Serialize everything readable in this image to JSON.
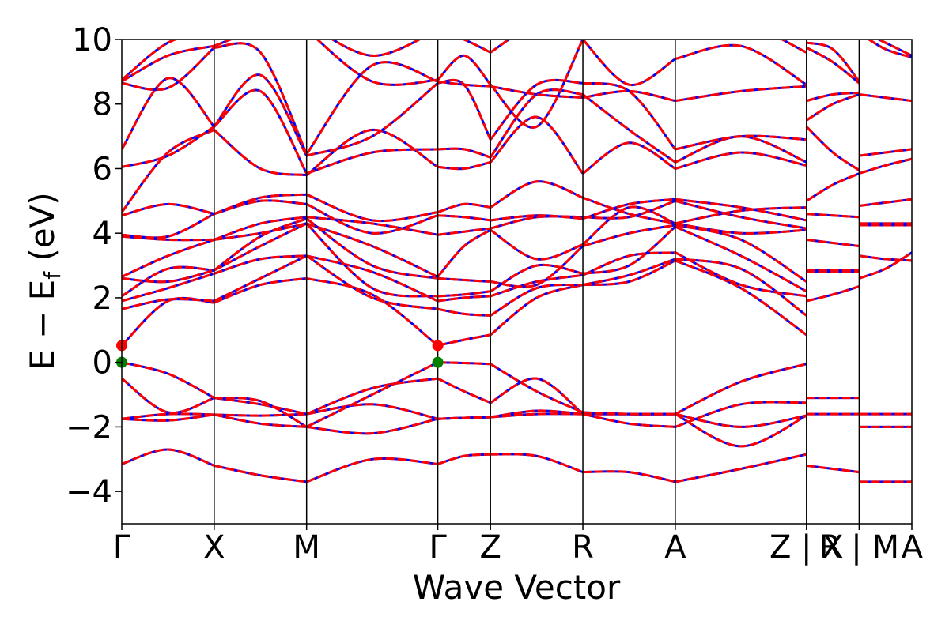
{
  "chart_data": {
    "type": "line",
    "xlabel": "Wave Vector",
    "ylabel_main": "E − E",
    "ylabel_sub": "f",
    "ylabel_unit": " (eV)",
    "ylim": [
      -5,
      10
    ],
    "yticks": [
      -4,
      -2,
      0,
      2,
      4,
      6,
      8,
      10
    ],
    "ytick_labels": [
      "−4",
      "−2",
      "0",
      "2",
      "4",
      "6",
      "8",
      "10"
    ],
    "kpoints": [
      {
        "label": "Γ",
        "x": 0.0
      },
      {
        "label": "X",
        "x": 1.0
      },
      {
        "label": "M",
        "x": 2.0
      },
      {
        "label": "Γ",
        "x": 3.42
      },
      {
        "label": "Z",
        "x": 3.99
      },
      {
        "label": "R",
        "x": 4.99
      },
      {
        "label": "A",
        "x": 5.99
      },
      {
        "label": "Z | X",
        "x": 7.41
      },
      {
        "label": "R | M",
        "x": 7.98
      },
      {
        "label": "A",
        "x": 8.55
      }
    ],
    "xlim": [
      0,
      8.55
    ],
    "colors": {
      "spin_up": "#0000ff",
      "spin_down": "#ff0000",
      "vbm": "#008000",
      "cbm": "#ff0000",
      "axis": "#000000"
    },
    "vbm_points": [
      {
        "x": 0.0,
        "y": 0.0
      },
      {
        "x": 3.42,
        "y": 0.0
      }
    ],
    "cbm_points": [
      {
        "x": 0.0,
        "y": 0.52
      },
      {
        "x": 3.42,
        "y": 0.52
      }
    ],
    "segments": [
      {
        "x_start": 0.0,
        "x_end": 1.0,
        "bands": [
          [
            -3.15,
            -2.7,
            -3.2
          ],
          [
            -1.75,
            -1.8,
            -1.62
          ],
          [
            -1.75,
            -1.6,
            -1.62
          ],
          [
            -0.5,
            -1.55,
            -1.1
          ],
          [
            0.0,
            -0.35,
            -1.1
          ],
          [
            0.52,
            1.9,
            1.85
          ],
          [
            1.65,
            1.95,
            1.9
          ],
          [
            1.9,
            2.3,
            2.75
          ],
          [
            2.05,
            2.9,
            2.85
          ],
          [
            2.6,
            2.5,
            2.85
          ],
          [
            2.65,
            3.3,
            3.8
          ],
          [
            3.9,
            3.8,
            3.8
          ],
          [
            3.95,
            3.9,
            4.6
          ],
          [
            4.55,
            4.9,
            4.6
          ],
          [
            4.65,
            6.5,
            7.2
          ],
          [
            6.05,
            6.4,
            7.3
          ],
          [
            6.6,
            8.8,
            7.3
          ],
          [
            8.65,
            8.5,
            9.75
          ],
          [
            8.7,
            9.5,
            9.8
          ],
          [
            8.75,
            9.9,
            10.3
          ]
        ]
      },
      {
        "x_start": 1.0,
        "x_end": 2.0,
        "bands": [
          [
            -3.2,
            -3.5,
            -3.7
          ],
          [
            -1.62,
            -1.9,
            -2.0
          ],
          [
            -1.62,
            -1.65,
            -1.6
          ],
          [
            -1.1,
            -1.3,
            -1.6
          ],
          [
            -1.1,
            -1.2,
            -2.0
          ],
          [
            1.85,
            2.4,
            2.6
          ],
          [
            1.9,
            2.6,
            3.3
          ],
          [
            2.75,
            3.2,
            3.3
          ],
          [
            2.85,
            3.6,
            4.3
          ],
          [
            2.85,
            3.9,
            4.45
          ],
          [
            3.8,
            4.0,
            4.3
          ],
          [
            3.8,
            4.3,
            4.5
          ],
          [
            4.6,
            5.0,
            4.9
          ],
          [
            4.6,
            5.1,
            5.2
          ],
          [
            7.2,
            6.0,
            5.8
          ],
          [
            7.3,
            8.4,
            5.85
          ],
          [
            7.3,
            8.9,
            6.4
          ],
          [
            9.75,
            9.6,
            6.45
          ],
          [
            9.8,
            10.3,
            10.3
          ],
          [
            10.3,
            10.5,
            10.5
          ]
        ]
      },
      {
        "x_start": 2.0,
        "x_end": 3.42,
        "bands": [
          [
            -3.7,
            -3.0,
            -3.15
          ],
          [
            -2.0,
            -2.2,
            -1.75
          ],
          [
            -1.6,
            -1.3,
            -1.75
          ],
          [
            -1.6,
            -0.8,
            -0.5
          ],
          [
            -2.0,
            -1.0,
            0.0
          ],
          [
            2.6,
            2.1,
            0.52
          ],
          [
            3.3,
            2.0,
            1.65
          ],
          [
            3.3,
            2.8,
            1.9
          ],
          [
            4.3,
            2.3,
            2.05
          ],
          [
            4.45,
            3.0,
            2.6
          ],
          [
            4.3,
            3.6,
            2.65
          ],
          [
            4.5,
            4.3,
            3.95
          ],
          [
            4.9,
            4.0,
            4.55
          ],
          [
            5.2,
            4.4,
            4.65
          ],
          [
            5.8,
            7.2,
            6.05
          ],
          [
            5.85,
            6.5,
            6.6
          ],
          [
            6.4,
            7.0,
            8.65
          ],
          [
            6.45,
            9.2,
            8.7
          ],
          [
            10.3,
            8.7,
            8.75
          ],
          [
            10.5,
            9.5,
            10.3
          ]
        ]
      },
      {
        "x_start": 3.42,
        "x_end": 3.99,
        "bands": [
          [
            -3.15,
            -2.9,
            -2.85
          ],
          [
            -1.75,
            -1.72,
            -1.7
          ],
          [
            -1.75,
            -1.72,
            -1.7
          ],
          [
            -0.5,
            -0.9,
            -1.25
          ],
          [
            0.0,
            -0.02,
            -0.05
          ],
          [
            0.52,
            0.7,
            0.85
          ],
          [
            1.65,
            1.5,
            1.45
          ],
          [
            1.9,
            2.0,
            2.05
          ],
          [
            2.05,
            2.1,
            2.2
          ],
          [
            2.6,
            2.55,
            2.5
          ],
          [
            2.65,
            3.6,
            4.1
          ],
          [
            3.95,
            4.05,
            4.15
          ],
          [
            4.55,
            4.5,
            4.4
          ],
          [
            4.65,
            4.9,
            4.8
          ],
          [
            6.05,
            6.0,
            6.2
          ],
          [
            6.6,
            6.6,
            6.35
          ],
          [
            8.65,
            8.6,
            6.9
          ],
          [
            8.7,
            8.6,
            8.55
          ],
          [
            8.75,
            9.5,
            8.6
          ],
          [
            10.3,
            10.0,
            9.6
          ]
        ]
      },
      {
        "x_start": 3.99,
        "x_end": 4.99,
        "bands": [
          [
            -2.85,
            -2.9,
            -3.4
          ],
          [
            -1.7,
            -1.5,
            -1.6
          ],
          [
            -1.7,
            -1.6,
            -1.6
          ],
          [
            -1.25,
            -0.5,
            -1.6
          ],
          [
            -0.05,
            -0.9,
            -1.55
          ],
          [
            0.85,
            2.0,
            2.4
          ],
          [
            1.45,
            2.3,
            2.4
          ],
          [
            2.05,
            2.5,
            2.7
          ],
          [
            2.2,
            3.0,
            2.75
          ],
          [
            2.5,
            2.4,
            3.6
          ],
          [
            4.1,
            3.2,
            3.65
          ],
          [
            4.15,
            4.5,
            4.5
          ],
          [
            4.4,
            4.55,
            4.45
          ],
          [
            4.8,
            5.6,
            5.1
          ],
          [
            6.2,
            7.6,
            5.85
          ],
          [
            6.35,
            8.3,
            8.3
          ],
          [
            6.9,
            8.6,
            8.65
          ],
          [
            8.55,
            8.3,
            8.2
          ],
          [
            8.6,
            7.3,
            10.0
          ],
          [
            9.6,
            10.5,
            10.6
          ]
        ]
      },
      {
        "x_start": 4.99,
        "x_end": 5.99,
        "bands": [
          [
            -3.4,
            -3.4,
            -3.7
          ],
          [
            -1.6,
            -1.6,
            -1.6
          ],
          [
            -1.6,
            -1.6,
            -1.6
          ],
          [
            -1.6,
            -1.9,
            -2.0
          ],
          [
            -1.55,
            -1.6,
            -1.6
          ],
          [
            2.4,
            2.5,
            3.15
          ],
          [
            2.4,
            2.7,
            3.2
          ],
          [
            2.7,
            3.3,
            3.4
          ],
          [
            2.75,
            3.0,
            4.2
          ],
          [
            3.6,
            4.0,
            4.25
          ],
          [
            3.65,
            4.8,
            4.3
          ],
          [
            4.5,
            4.5,
            5.0
          ],
          [
            4.45,
            4.9,
            5.05
          ],
          [
            5.1,
            4.6,
            4.3
          ],
          [
            5.85,
            6.8,
            6.0
          ],
          [
            8.3,
            7.2,
            6.2
          ],
          [
            8.65,
            8.4,
            6.6
          ],
          [
            8.2,
            8.4,
            8.1
          ],
          [
            10.0,
            8.6,
            9.4
          ],
          [
            10.6,
            10.2,
            10.1
          ]
        ]
      },
      {
        "x_start": 5.99,
        "x_end": 7.41,
        "bands": [
          [
            -3.7,
            -3.3,
            -2.85
          ],
          [
            -1.6,
            -2.6,
            -1.65
          ],
          [
            -1.6,
            -2.0,
            -1.65
          ],
          [
            -2.0,
            -1.3,
            -1.25
          ],
          [
            -1.6,
            -0.6,
            -0.05
          ],
          [
            3.15,
            2.3,
            0.85
          ],
          [
            3.2,
            2.9,
            1.45
          ],
          [
            3.4,
            2.4,
            2.05
          ],
          [
            4.2,
            3.3,
            2.2
          ],
          [
            4.25,
            3.8,
            2.5
          ],
          [
            4.3,
            4.0,
            4.1
          ],
          [
            5.0,
            4.5,
            4.15
          ],
          [
            5.05,
            4.8,
            4.4
          ],
          [
            4.3,
            4.7,
            4.8
          ],
          [
            6.0,
            6.5,
            6.1
          ],
          [
            6.2,
            7.0,
            6.2
          ],
          [
            6.6,
            7.0,
            6.9
          ],
          [
            8.1,
            8.4,
            8.55
          ],
          [
            9.4,
            9.8,
            8.6
          ],
          [
            10.1,
            10.5,
            9.6
          ]
        ]
      },
      {
        "x_start": 7.41,
        "x_end": 7.98,
        "bands": [
          [
            -3.2,
            -3.3,
            -3.4
          ],
          [
            -1.6,
            -1.6,
            -1.6
          ],
          [
            -1.1,
            -1.1,
            -1.1
          ],
          [
            1.9,
            2.1,
            2.35
          ],
          [
            2.8,
            2.8,
            2.8
          ],
          [
            2.85,
            2.85,
            2.85
          ],
          [
            3.8,
            3.7,
            3.6
          ],
          [
            4.6,
            4.55,
            4.5
          ],
          [
            5.0,
            5.5,
            5.85
          ],
          [
            7.3,
            6.5,
            5.95
          ],
          [
            7.5,
            8.0,
            8.3
          ],
          [
            8.1,
            8.3,
            8.35
          ],
          [
            9.75,
            9.3,
            8.65
          ],
          [
            9.9,
            9.7,
            8.7
          ]
        ]
      },
      {
        "x_start": 7.98,
        "x_end": 8.55,
        "bands": [
          [
            -3.7,
            -3.7,
            -3.7
          ],
          [
            -2.0,
            -2.0,
            -2.0
          ],
          [
            -1.6,
            -1.6,
            -1.6
          ],
          [
            2.6,
            2.9,
            3.4
          ],
          [
            3.3,
            3.2,
            3.15
          ],
          [
            4.25,
            4.25,
            4.25
          ],
          [
            4.3,
            4.3,
            4.3
          ],
          [
            4.85,
            4.95,
            5.05
          ],
          [
            5.85,
            6.1,
            6.3
          ],
          [
            6.4,
            6.5,
            6.6
          ],
          [
            8.3,
            8.2,
            8.1
          ],
          [
            10.2,
            9.7,
            9.45
          ],
          [
            10.3,
            9.9,
            9.5
          ]
        ]
      }
    ]
  }
}
